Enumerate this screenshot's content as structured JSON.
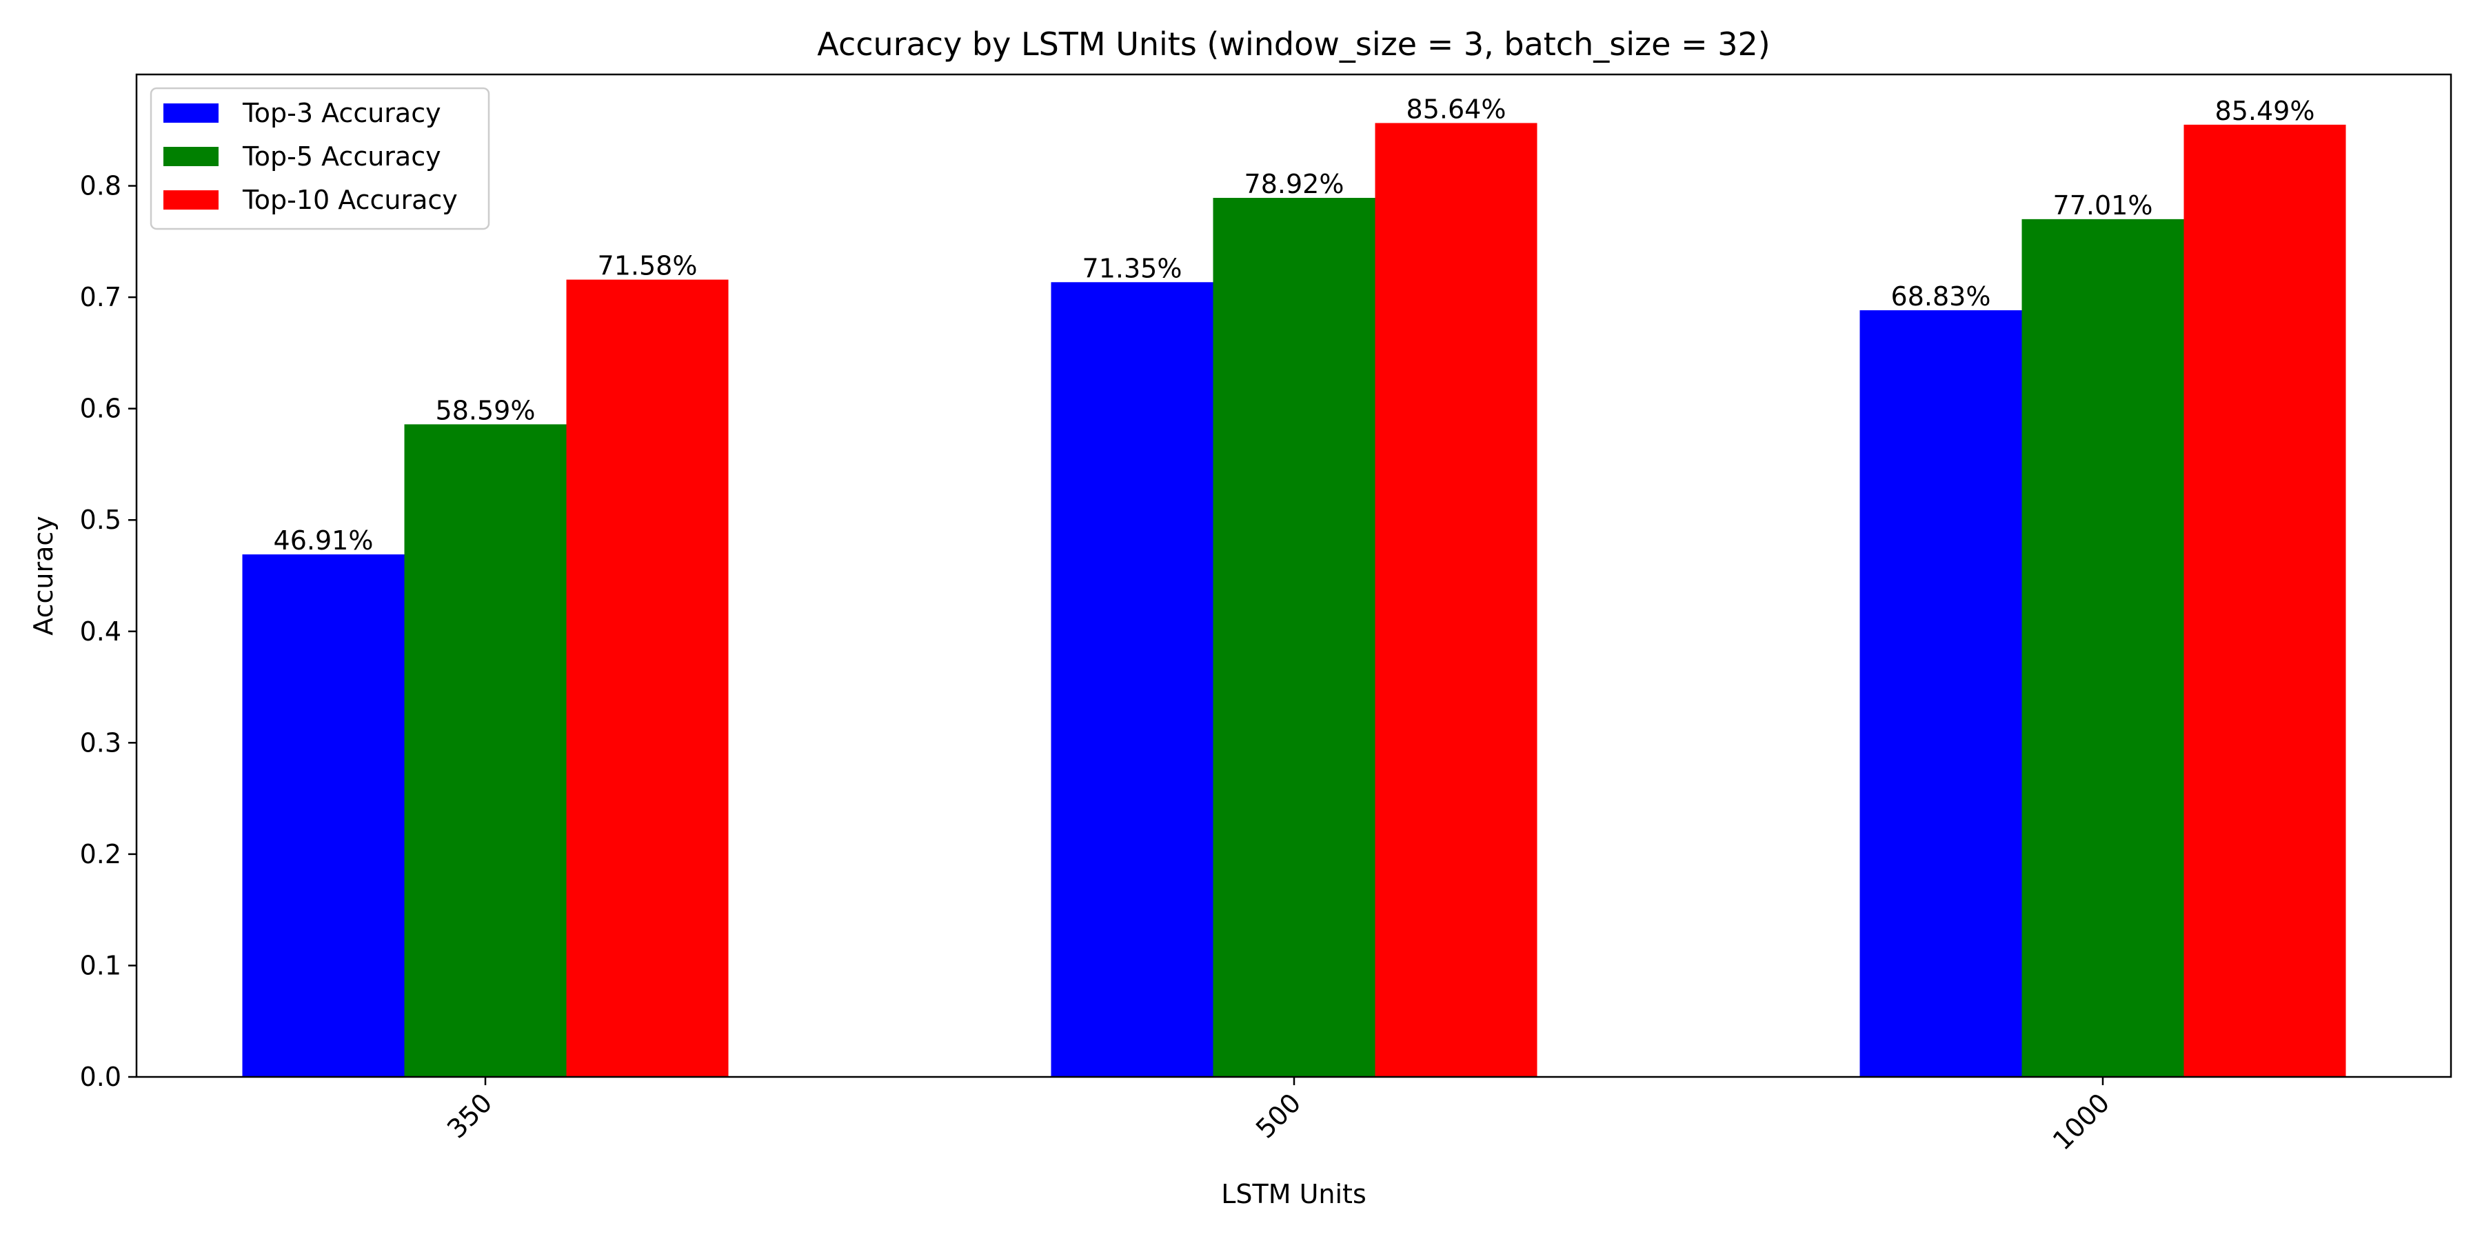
{
  "chart_data": {
    "type": "bar",
    "title": "Accuracy by LSTM Units (window_size = 3, batch_size = 32)",
    "xlabel": "LSTM Units",
    "ylabel": "Accuracy",
    "categories": [
      "350",
      "500",
      "1000"
    ],
    "ylim": [
      0,
      0.9
    ],
    "yticks": [
      0.0,
      0.1,
      0.2,
      0.3,
      0.4,
      0.5,
      0.6,
      0.7,
      0.8
    ],
    "ytick_labels": [
      "0.0",
      "0.1",
      "0.2",
      "0.3",
      "0.4",
      "0.5",
      "0.6",
      "0.7",
      "0.8"
    ],
    "grid": false,
    "legend_position": "top-left",
    "series": [
      {
        "name": "Top-3 Accuracy",
        "color": "#0000ff",
        "values": [
          0.4691,
          0.7135,
          0.6883
        ],
        "labels": [
          "46.91%",
          "71.35%",
          "68.83%"
        ]
      },
      {
        "name": "Top-5 Accuracy",
        "color": "#008000",
        "values": [
          0.5859,
          0.7892,
          0.7701
        ],
        "labels": [
          "58.59%",
          "78.92%",
          "77.01%"
        ]
      },
      {
        "name": "Top-10 Accuracy",
        "color": "#ff0000",
        "values": [
          0.7158,
          0.8564,
          0.8549
        ],
        "labels": [
          "71.58%",
          "85.64%",
          "85.49%"
        ]
      }
    ]
  }
}
